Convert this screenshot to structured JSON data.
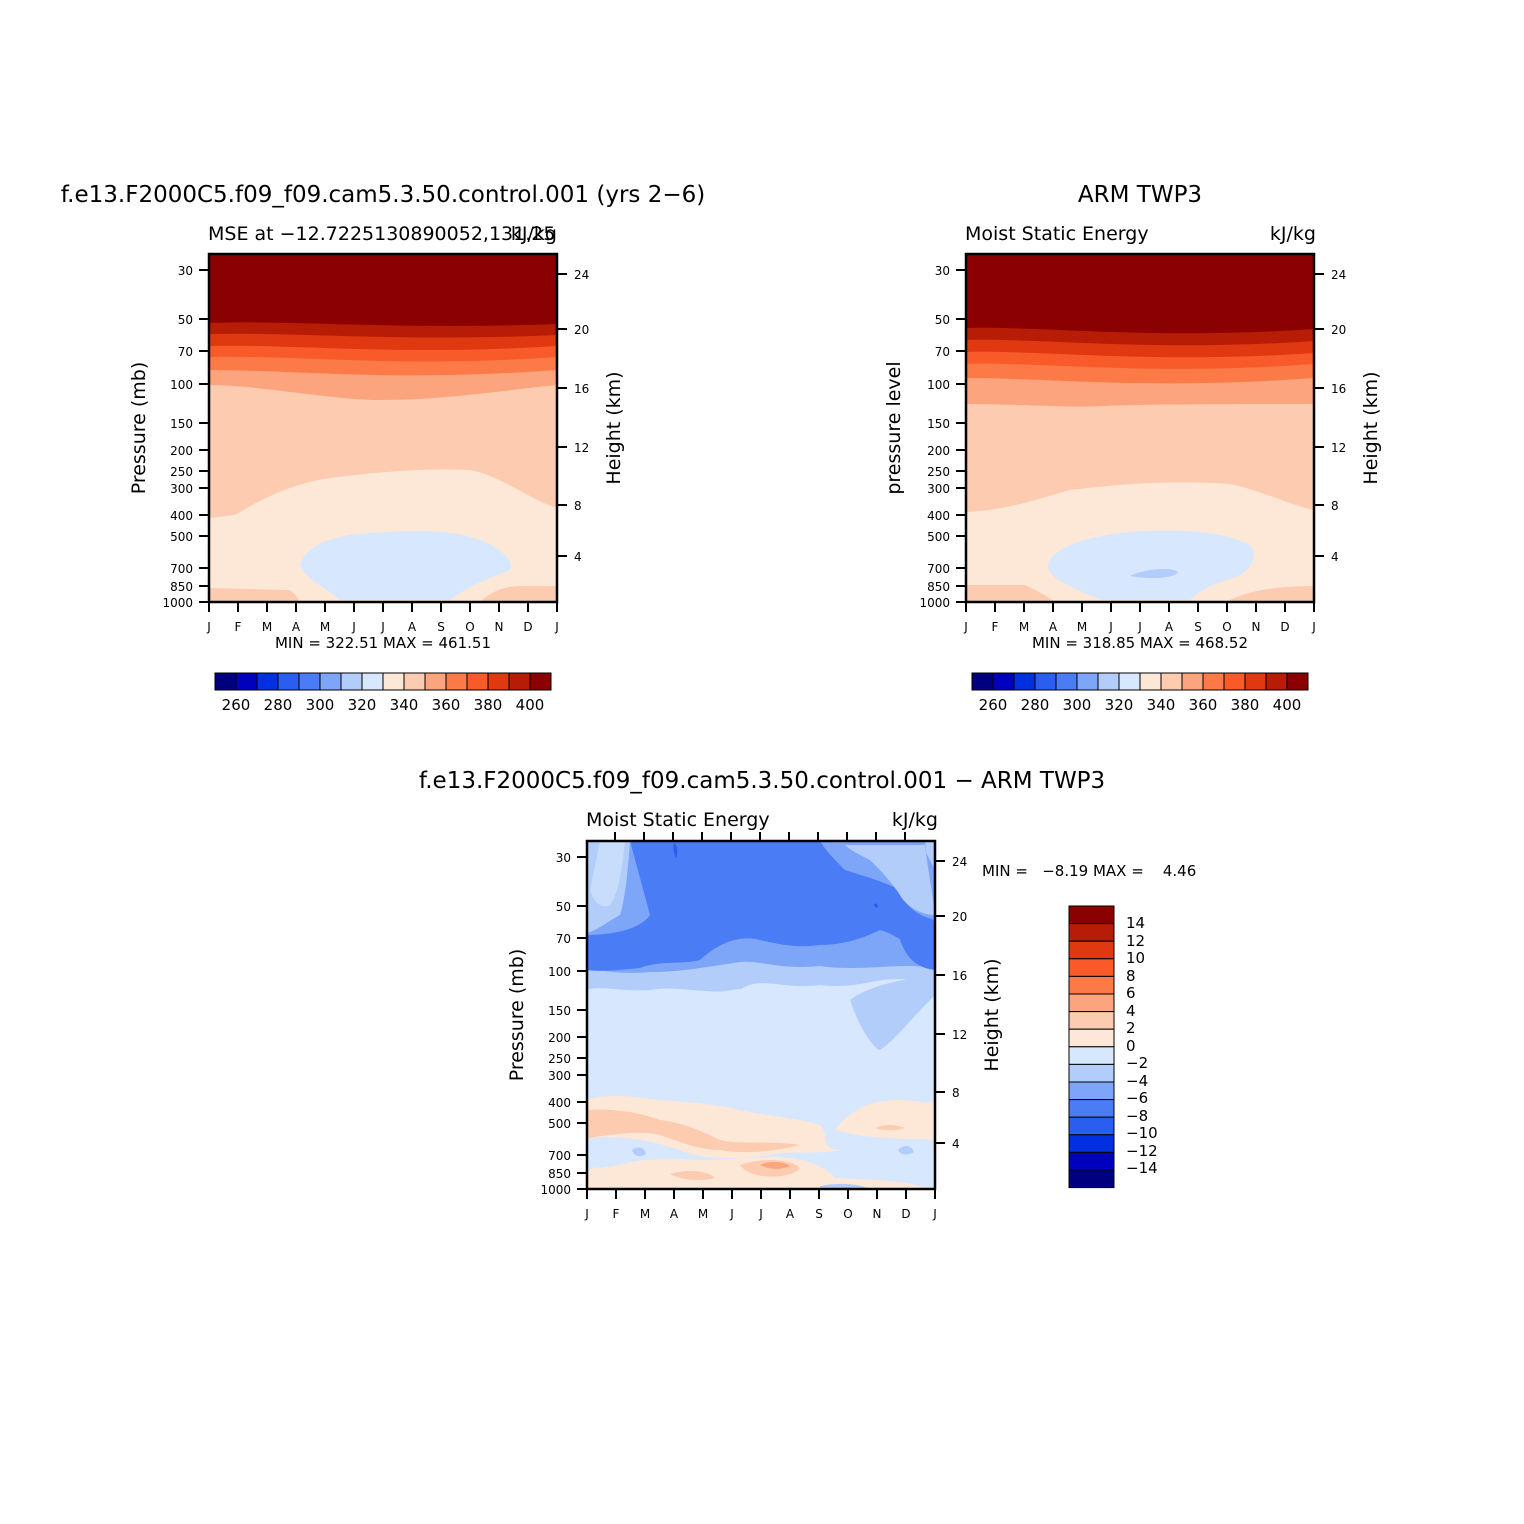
{
  "figure": {
    "left_title": "f.e13.F2000C5.f09_f09.cam5.3.50.control.001 (yrs 2−6)",
    "right_title": "ARM TWP3",
    "bottom_title": "f.e13.F2000C5.f09_f09.cam5.3.50.control.001 − ARM TWP3"
  },
  "chart_data": [
    {
      "type": "heatmap",
      "panel": "model",
      "subtitle_left": "MSE at −12.7225130890052,131.25",
      "subtitle_right": "kJ/kg",
      "ylabel": "Pressure (mb)",
      "ylabel_right": "Height (km)",
      "months": [
        "J",
        "F",
        "M",
        "A",
        "M",
        "J",
        "J",
        "A",
        "S",
        "O",
        "N",
        "D",
        "J"
      ],
      "pressure_ticks": [
        "30",
        "50",
        "70",
        "100",
        "150",
        "200",
        "250",
        "300",
        "400",
        "500",
        "700",
        "850",
        "1000"
      ],
      "height_ticks": [
        "24",
        "20",
        "16",
        "12",
        "8",
        "4"
      ],
      "colorbar_labels": [
        "260",
        "280",
        "300",
        "320",
        "340",
        "360",
        "380",
        "400"
      ],
      "min": "322.51",
      "max": "461.51",
      "stats_text": "MIN = 322.51 MAX = 461.51"
    },
    {
      "type": "heatmap",
      "panel": "obs",
      "subtitle_left": "Moist Static Energy",
      "subtitle_right": "kJ/kg",
      "ylabel": "pressure level",
      "ylabel_right": "Height (km)",
      "months": [
        "J",
        "F",
        "M",
        "A",
        "M",
        "J",
        "J",
        "A",
        "S",
        "O",
        "N",
        "D",
        "J"
      ],
      "pressure_ticks": [
        "30",
        "50",
        "70",
        "100",
        "150",
        "200",
        "250",
        "300",
        "400",
        "500",
        "700",
        "850",
        "1000"
      ],
      "height_ticks": [
        "24",
        "20",
        "16",
        "12",
        "8",
        "4"
      ],
      "colorbar_labels": [
        "260",
        "280",
        "300",
        "320",
        "340",
        "360",
        "380",
        "400"
      ],
      "min": "318.85",
      "max": "468.52",
      "stats_text": "MIN = 318.85 MAX = 468.52"
    },
    {
      "type": "heatmap",
      "panel": "difference",
      "subtitle_left": "Moist Static Energy",
      "subtitle_right": "kJ/kg",
      "ylabel": "Pressure (mb)",
      "ylabel_right": "Height (km)",
      "months": [
        "J",
        "F",
        "M",
        "A",
        "M",
        "J",
        "J",
        "A",
        "S",
        "O",
        "N",
        "D",
        "J"
      ],
      "pressure_ticks": [
        "30",
        "50",
        "70",
        "100",
        "150",
        "200",
        "250",
        "300",
        "400",
        "500",
        "700",
        "850",
        "1000"
      ],
      "height_ticks": [
        "24",
        "20",
        "16",
        "12",
        "8",
        "4"
      ],
      "colorbar_labels": [
        "14",
        "12",
        "10",
        "8",
        "6",
        "4",
        "2",
        "0",
        "−2",
        "−4",
        "−6",
        "−8",
        "−10",
        "−12",
        "−14"
      ],
      "min": "−8.19",
      "max": "4.46",
      "stats_text": "MIN =   −8.19 MAX =    4.46"
    }
  ],
  "colors": {
    "abs_scale": [
      "#00007f",
      "#0000bf",
      "#0030e0",
      "#2a5ef0",
      "#4a7cf6",
      "#7ea6f8",
      "#b3cdfb",
      "#d6e7fe",
      "#fde8d8",
      "#fccbb0",
      "#fba47d",
      "#fb7a47",
      "#f85a2a",
      "#e03810",
      "#b61c06",
      "#8b0000"
    ],
    "diff_scale": [
      "#8b0000",
      "#b61c06",
      "#e03810",
      "#f85a2a",
      "#fb7a47",
      "#fba47d",
      "#fccbb0",
      "#fde8d8",
      "#d6e7fe",
      "#b3cdfb",
      "#7ea6f8",
      "#4a7cf6",
      "#2a5ef0",
      "#0030e0",
      "#0000bf",
      "#00007f"
    ]
  }
}
